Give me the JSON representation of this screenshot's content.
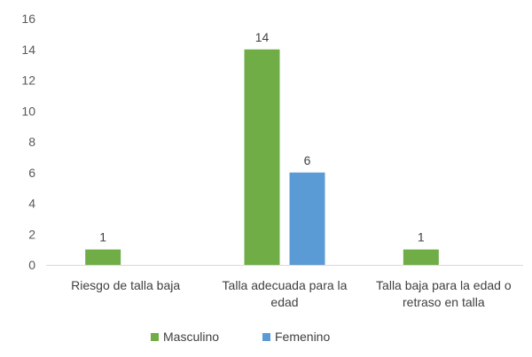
{
  "chart_data": {
    "type": "bar",
    "categories": [
      [
        "Riesgo de talla baja"
      ],
      [
        "Talla adecuada para la",
        "edad"
      ],
      [
        "Talla baja para la edad o",
        "retraso en talla"
      ]
    ],
    "series": [
      {
        "name": "Masculino",
        "color": "#70AD47",
        "values": [
          1,
          14,
          1
        ]
      },
      {
        "name": "Femenino",
        "color": "#5B9BD5",
        "values": [
          null,
          6,
          null
        ]
      }
    ],
    "yticks": [
      "0",
      "2",
      "4",
      "6",
      "8",
      "10",
      "12",
      "14",
      "16"
    ],
    "ylim": [
      0,
      16
    ],
    "grid": false,
    "legend_position": "bottom",
    "data_labels": true
  }
}
